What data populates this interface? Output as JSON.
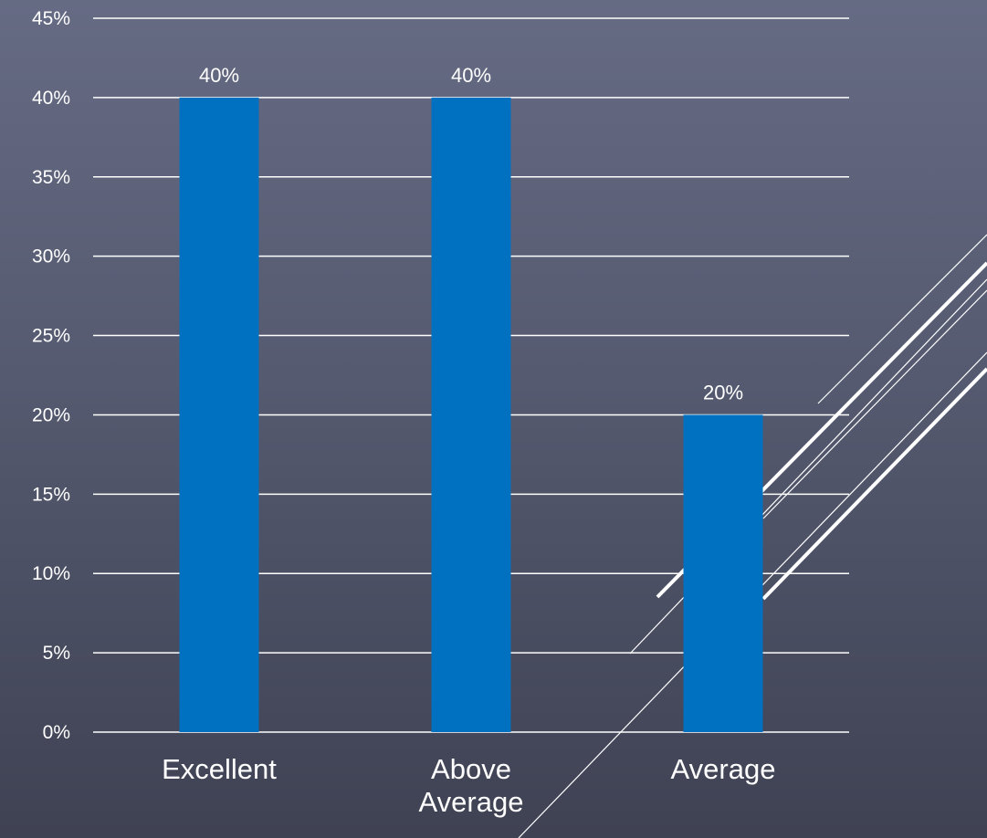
{
  "chart_data": {
    "type": "bar",
    "title": "",
    "xlabel": "",
    "ylabel": "",
    "categories": [
      "Excellent",
      "Above Average",
      "Average"
    ],
    "category_lines": [
      [
        "Excellent"
      ],
      [
        "Above",
        "Average"
      ],
      [
        "Average"
      ]
    ],
    "values": [
      40,
      40,
      20
    ],
    "data_labels": [
      "40%",
      "40%",
      "20%"
    ],
    "ylim": [
      0,
      45
    ],
    "y_ticks": [
      0,
      5,
      10,
      15,
      20,
      25,
      30,
      35,
      40,
      45
    ],
    "y_tick_labels": [
      "0%",
      "5%",
      "10%",
      "15%",
      "20%",
      "25%",
      "30%",
      "35%",
      "40%",
      "45%"
    ],
    "grid": true,
    "legend": "none",
    "bar_color": "#0070c0",
    "grid_color": "#ffffff",
    "text_color": "#ffffff"
  },
  "colors": {
    "background_top": "#666b84",
    "background_bottom": "#3f4253"
  }
}
